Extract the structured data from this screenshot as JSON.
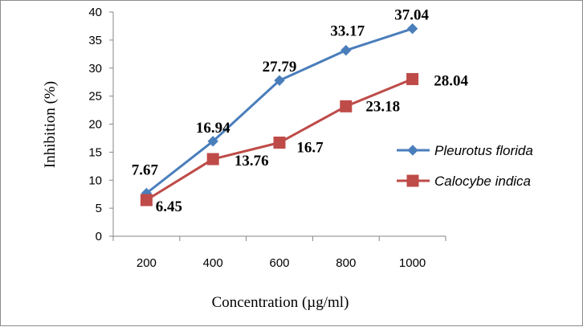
{
  "chart_data": {
    "type": "line",
    "categories": [
      "200",
      "400",
      "600",
      "800",
      "1000"
    ],
    "series": [
      {
        "name": "Pleurotus florida",
        "values": [
          7.67,
          16.94,
          27.79,
          33.17,
          37.04
        ],
        "labels": [
          "7.67",
          "16.94",
          "27.79",
          "33.17",
          "37.04"
        ],
        "color": "#4a7ebb",
        "marker": "diamond"
      },
      {
        "name": "Calocybe indica",
        "values": [
          6.45,
          13.76,
          16.7,
          23.18,
          28.04
        ],
        "labels": [
          "6.45",
          "13.76",
          "16.7",
          "23.18",
          "28.04"
        ],
        "color": "#be4b48",
        "marker": "square"
      }
    ],
    "xlabel": "Concentration (µg/ml)",
    "ylabel": "Inhibition (%)",
    "ylim": [
      0,
      40
    ],
    "yticks": [
      "0",
      "5",
      "10",
      "15",
      "20",
      "25",
      "30",
      "35",
      "40"
    ],
    "grid": false,
    "legend_position": "right"
  }
}
